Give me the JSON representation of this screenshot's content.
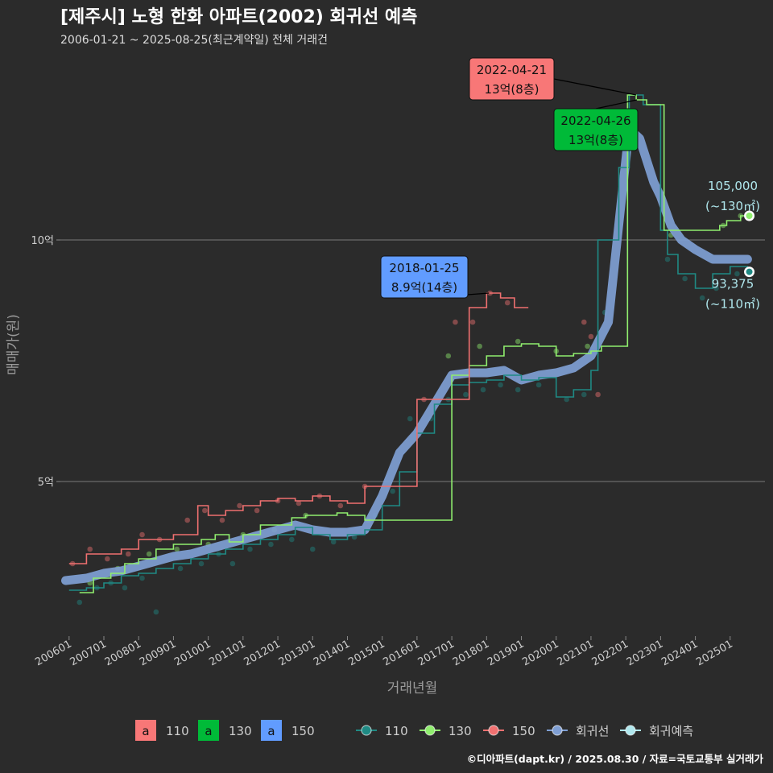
{
  "title": "[제주시] 노형 한화 아파트(2002) 회귀선 예측",
  "subtitle": "2006-01-21 ~ 2025-08-25(최근계약일) 전체 거래건",
  "footer": "©디아파트(dapt.kr) / 2025.08.30 / 자료=국토교통부 실거래가",
  "colors": {
    "s110": "#1f8a84",
    "s130": "#90ee6e",
    "s150": "#f07070",
    "regression": "#7f9fd4",
    "forecast": "#b0e8ee",
    "annot110": "#f87777",
    "annot130": "#00ba38",
    "annot150": "#619cff",
    "background": "#2b2b2b",
    "grid": "#6a6a6a"
  },
  "chart_data": {
    "type": "scatter",
    "xlabel": "거래년월",
    "ylabel": "매매가(원)",
    "xlim": [
      2005.75,
      2026.0
    ],
    "ylim": [
      1.8,
      13.8
    ],
    "y_unit": "억",
    "y_ticks": [
      {
        "value": 5,
        "label": "5억"
      },
      {
        "value": 10,
        "label": "10억"
      }
    ],
    "x_ticks": [
      {
        "value": 2006,
        "label": "200601"
      },
      {
        "value": 2007,
        "label": "200701"
      },
      {
        "value": 2008,
        "label": "200801"
      },
      {
        "value": 2009,
        "label": "200901"
      },
      {
        "value": 2010,
        "label": "201001"
      },
      {
        "value": 2011,
        "label": "201101"
      },
      {
        "value": 2012,
        "label": "201201"
      },
      {
        "value": 2013,
        "label": "201301"
      },
      {
        "value": 2014,
        "label": "201401"
      },
      {
        "value": 2015,
        "label": "201501"
      },
      {
        "value": 2016,
        "label": "201601"
      },
      {
        "value": 2017,
        "label": "201701"
      },
      {
        "value": 2018,
        "label": "201801"
      },
      {
        "value": 2019,
        "label": "201901"
      },
      {
        "value": 2020,
        "label": "202001"
      },
      {
        "value": 2021,
        "label": "202101"
      },
      {
        "value": 2022,
        "label": "202201"
      },
      {
        "value": 2023,
        "label": "202301"
      },
      {
        "value": 2024,
        "label": "202401"
      },
      {
        "value": 2025,
        "label": "202501"
      }
    ],
    "series": [
      {
        "name": "110",
        "key": "s110",
        "line": [
          [
            2006.0,
            2.75
          ],
          [
            2006.5,
            2.8
          ],
          [
            2007.0,
            2.9
          ],
          [
            2007.5,
            3.05
          ],
          [
            2008.0,
            3.1
          ],
          [
            2008.5,
            3.2
          ],
          [
            2009.0,
            3.3
          ],
          [
            2009.5,
            3.4
          ],
          [
            2010.0,
            3.5
          ],
          [
            2010.5,
            3.6
          ],
          [
            2011.0,
            3.7
          ],
          [
            2011.5,
            3.8
          ],
          [
            2012.0,
            3.9
          ],
          [
            2012.5,
            4.05
          ],
          [
            2013.0,
            3.9
          ],
          [
            2013.5,
            3.8
          ],
          [
            2014.0,
            3.9
          ],
          [
            2014.5,
            4.0
          ],
          [
            2015.0,
            4.5
          ],
          [
            2015.5,
            5.2
          ],
          [
            2016.0,
            6.0
          ],
          [
            2016.5,
            6.6
          ],
          [
            2017.0,
            7.0
          ],
          [
            2017.5,
            7.05
          ],
          [
            2018.0,
            7.1
          ],
          [
            2018.5,
            7.2
          ],
          [
            2019.0,
            7.1
          ],
          [
            2019.5,
            7.15
          ],
          [
            2020.0,
            6.75
          ],
          [
            2020.5,
            6.9
          ],
          [
            2021.0,
            7.3
          ],
          [
            2021.2,
            10.0
          ],
          [
            2021.5,
            10.0
          ],
          [
            2021.8,
            11.5
          ],
          [
            2022.1,
            13.0
          ],
          [
            2022.5,
            12.8
          ],
          [
            2023.0,
            10.2
          ],
          [
            2023.2,
            9.7
          ],
          [
            2023.5,
            9.3
          ],
          [
            2024.0,
            9.0
          ],
          [
            2024.5,
            9.3
          ],
          [
            2025.0,
            9.45
          ],
          [
            2025.5,
            9.4
          ]
        ],
        "points": [
          [
            2006.3,
            2.5
          ],
          [
            2006.8,
            2.8
          ],
          [
            2007.2,
            2.9
          ],
          [
            2007.6,
            2.8
          ],
          [
            2008.1,
            3.0
          ],
          [
            2008.5,
            2.3
          ],
          [
            2009.2,
            3.2
          ],
          [
            2009.8,
            3.3
          ],
          [
            2010.3,
            3.5
          ],
          [
            2010.7,
            3.3
          ],
          [
            2011.2,
            3.6
          ],
          [
            2011.8,
            3.7
          ],
          [
            2012.4,
            3.8
          ],
          [
            2013.0,
            3.6
          ],
          [
            2013.6,
            3.75
          ],
          [
            2014.2,
            3.85
          ],
          [
            2014.8,
            4.3
          ],
          [
            2015.3,
            4.8
          ],
          [
            2015.8,
            6.3
          ],
          [
            2016.4,
            6.3
          ],
          [
            2016.9,
            6.7
          ],
          [
            2017.4,
            6.8
          ],
          [
            2017.9,
            6.9
          ],
          [
            2018.4,
            7.0
          ],
          [
            2018.9,
            6.9
          ],
          [
            2019.5,
            7.0
          ],
          [
            2020.3,
            6.7
          ],
          [
            2020.8,
            6.8
          ],
          [
            2021.4,
            8.5
          ],
          [
            2023.2,
            9.6
          ],
          [
            2023.7,
            9.2
          ],
          [
            2024.2,
            8.8
          ],
          [
            2024.6,
            9.0
          ],
          [
            2025.2,
            9.3
          ]
        ]
      },
      {
        "name": "130",
        "key": "s130",
        "line": [
          [
            2006.3,
            2.7
          ],
          [
            2006.7,
            3.0
          ],
          [
            2007.2,
            3.1
          ],
          [
            2007.6,
            3.3
          ],
          [
            2008.0,
            3.4
          ],
          [
            2008.5,
            3.6
          ],
          [
            2009.0,
            3.7
          ],
          [
            2009.4,
            3.7
          ],
          [
            2009.8,
            3.8
          ],
          [
            2010.2,
            3.9
          ],
          [
            2010.6,
            3.75
          ],
          [
            2011.0,
            3.9
          ],
          [
            2011.5,
            4.1
          ],
          [
            2012.0,
            4.1
          ],
          [
            2012.4,
            4.25
          ],
          [
            2012.8,
            4.3
          ],
          [
            2013.2,
            4.3
          ],
          [
            2013.7,
            4.35
          ],
          [
            2014.0,
            4.3
          ],
          [
            2014.5,
            4.2
          ],
          [
            2015.0,
            4.2
          ],
          [
            2017.0,
            7.2
          ],
          [
            2017.5,
            7.4
          ],
          [
            2018.0,
            7.6
          ],
          [
            2018.5,
            7.8
          ],
          [
            2019.0,
            7.85
          ],
          [
            2019.5,
            7.8
          ],
          [
            2020.0,
            7.6
          ],
          [
            2020.5,
            7.65
          ],
          [
            2021.0,
            7.7
          ],
          [
            2021.3,
            7.8
          ],
          [
            2022.05,
            13.0
          ],
          [
            2022.3,
            12.9
          ],
          [
            2022.6,
            12.8
          ],
          [
            2023.1,
            10.2
          ],
          [
            2023.4,
            10.2
          ],
          [
            2024.7,
            10.3
          ],
          [
            2024.9,
            10.4
          ],
          [
            2025.3,
            10.5
          ],
          [
            2025.55,
            10.5
          ]
        ],
        "points": [
          [
            2006.6,
            2.9
          ],
          [
            2007.4,
            3.2
          ],
          [
            2008.3,
            3.5
          ],
          [
            2009.1,
            3.6
          ],
          [
            2010.0,
            3.7
          ],
          [
            2011.0,
            3.9
          ],
          [
            2011.9,
            4.0
          ],
          [
            2012.8,
            4.3
          ],
          [
            2014.6,
            4.2
          ],
          [
            2016.9,
            7.6
          ],
          [
            2017.8,
            7.8
          ],
          [
            2018.9,
            7.9
          ],
          [
            2020.0,
            7.7
          ],
          [
            2020.9,
            7.8
          ],
          [
            2023.3,
            10.1
          ],
          [
            2024.8,
            10.3
          ],
          [
            2025.3,
            10.5
          ]
        ]
      },
      {
        "name": "150",
        "key": "s150",
        "line": [
          [
            2006.0,
            3.3
          ],
          [
            2006.5,
            3.5
          ],
          [
            2007.0,
            3.5
          ],
          [
            2007.5,
            3.6
          ],
          [
            2008.0,
            3.8
          ],
          [
            2008.5,
            3.8
          ],
          [
            2009.0,
            3.9
          ],
          [
            2009.3,
            3.9
          ],
          [
            2009.7,
            4.5
          ],
          [
            2010.0,
            4.3
          ],
          [
            2010.5,
            4.4
          ],
          [
            2011.0,
            4.5
          ],
          [
            2011.5,
            4.6
          ],
          [
            2012.0,
            4.65
          ],
          [
            2012.5,
            4.6
          ],
          [
            2013.0,
            4.7
          ],
          [
            2013.5,
            4.6
          ],
          [
            2014.0,
            4.55
          ],
          [
            2014.5,
            4.9
          ],
          [
            2016.0,
            6.7
          ],
          [
            2016.5,
            6.7
          ],
          [
            2017.5,
            8.6
          ],
          [
            2018.0,
            8.9
          ],
          [
            2018.4,
            8.8
          ],
          [
            2018.8,
            8.6
          ],
          [
            2019.2,
            8.6
          ]
        ],
        "points": [
          [
            2006.1,
            3.3
          ],
          [
            2006.6,
            3.6
          ],
          [
            2007.1,
            3.4
          ],
          [
            2007.7,
            3.5
          ],
          [
            2008.1,
            3.9
          ],
          [
            2008.6,
            3.8
          ],
          [
            2009.4,
            4.2
          ],
          [
            2009.9,
            4.4
          ],
          [
            2010.4,
            4.2
          ],
          [
            2010.9,
            4.5
          ],
          [
            2011.4,
            4.4
          ],
          [
            2012.0,
            4.6
          ],
          [
            2012.6,
            4.55
          ],
          [
            2013.2,
            4.7
          ],
          [
            2013.8,
            4.5
          ],
          [
            2014.5,
            4.9
          ],
          [
            2016.2,
            6.7
          ],
          [
            2017.1,
            8.3
          ],
          [
            2017.6,
            8.3
          ],
          [
            2018.1,
            8.9
          ],
          [
            2018.6,
            8.7
          ],
          [
            2020.8,
            8.3
          ],
          [
            2021.0,
            8.0
          ],
          [
            2021.2,
            6.8
          ]
        ]
      }
    ],
    "regression": [
      [
        2005.9,
        2.95
      ],
      [
        2006.5,
        3.0
      ],
      [
        2007.0,
        3.1
      ],
      [
        2007.5,
        3.15
      ],
      [
        2008.0,
        3.25
      ],
      [
        2008.5,
        3.35
      ],
      [
        2009.0,
        3.45
      ],
      [
        2009.5,
        3.5
      ],
      [
        2010.0,
        3.6
      ],
      [
        2010.5,
        3.7
      ],
      [
        2011.0,
        3.8
      ],
      [
        2011.5,
        3.9
      ],
      [
        2012.0,
        4.0
      ],
      [
        2012.5,
        4.1
      ],
      [
        2013.0,
        4.0
      ],
      [
        2013.5,
        3.95
      ],
      [
        2014.0,
        3.95
      ],
      [
        2014.5,
        4.0
      ],
      [
        2015.0,
        4.7
      ],
      [
        2015.5,
        5.6
      ],
      [
        2016.0,
        6.0
      ],
      [
        2016.5,
        6.6
      ],
      [
        2017.0,
        7.2
      ],
      [
        2017.5,
        7.25
      ],
      [
        2018.0,
        7.25
      ],
      [
        2018.5,
        7.3
      ],
      [
        2019.0,
        7.1
      ],
      [
        2019.5,
        7.2
      ],
      [
        2020.0,
        7.25
      ],
      [
        2020.5,
        7.35
      ],
      [
        2021.0,
        7.6
      ],
      [
        2021.5,
        8.3
      ],
      [
        2021.9,
        11.0
      ],
      [
        2022.1,
        12.3
      ],
      [
        2022.4,
        12.1
      ],
      [
        2022.8,
        11.2
      ],
      [
        2023.0,
        10.9
      ],
      [
        2023.3,
        10.3
      ],
      [
        2023.6,
        10.0
      ],
      [
        2024.0,
        9.8
      ],
      [
        2024.5,
        9.6
      ],
      [
        2025.0,
        9.6
      ],
      [
        2025.5,
        9.6
      ]
    ],
    "forecast_points": [
      {
        "series": "130",
        "x": 2025.55,
        "y": 10.5,
        "label_value": "105,000",
        "label_area": "(~130㎡)"
      },
      {
        "series": "110",
        "x": 2025.55,
        "y": 9.34,
        "label_value": "93,375",
        "label_area": "(~110㎡)"
      }
    ],
    "annotations": [
      {
        "series": "110",
        "date": "2022-04-21",
        "text": "13억(8층)",
        "x": 2022.3,
        "y": 13.0
      },
      {
        "series": "130",
        "date": "2022-04-26",
        "text": "13억(8층)",
        "x": 2022.32,
        "y": 12.9
      },
      {
        "series": "150",
        "date": "2018-01-25",
        "text": "8.9억(14층)",
        "x": 2018.07,
        "y": 8.9
      }
    ],
    "legend": {
      "fill": [
        {
          "box": "a",
          "label": "110",
          "key": "annot110"
        },
        {
          "box": "a",
          "label": "130",
          "key": "annot130"
        },
        {
          "box": "a",
          "label": "150",
          "key": "annot150"
        }
      ],
      "markers": [
        {
          "label": "110",
          "key": "s110"
        },
        {
          "label": "130",
          "key": "s130"
        },
        {
          "label": "150",
          "key": "s150"
        },
        {
          "label": "회귀선",
          "key": "regression"
        },
        {
          "label": "회귀예측",
          "key": "forecast"
        }
      ]
    }
  }
}
